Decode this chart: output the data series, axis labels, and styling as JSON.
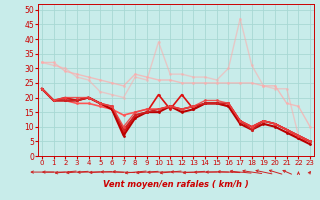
{
  "background_color": "#c8ecea",
  "grid_color": "#a8d8d4",
  "x_label": "Vent moyen/en rafales ( km/h )",
  "x_ticks": [
    0,
    1,
    2,
    3,
    4,
    5,
    6,
    7,
    8,
    9,
    10,
    11,
    12,
    13,
    14,
    15,
    16,
    17,
    18,
    19,
    20,
    21,
    22,
    23
  ],
  "ylim": [
    0,
    52
  ],
  "xlim": [
    -0.3,
    23.3
  ],
  "yticks": [
    0,
    5,
    10,
    15,
    20,
    25,
    30,
    35,
    40,
    45,
    50
  ],
  "series": [
    {
      "y": [
        32,
        32,
        29,
        28,
        27,
        26,
        25,
        24,
        28,
        27,
        26,
        26,
        25,
        25,
        25,
        25,
        25,
        25,
        25,
        24,
        24,
        18,
        17,
        10
      ],
      "color": "#ffaaaa",
      "alpha": 0.7,
      "lw": 1.0,
      "ms": 2.0
    },
    {
      "y": [
        32,
        31,
        30,
        27,
        26,
        22,
        21,
        20,
        27,
        26,
        39,
        28,
        28,
        27,
        27,
        26,
        30,
        47,
        31,
        24,
        23,
        23,
        7,
        5
      ],
      "color": "#ffaaaa",
      "alpha": 0.55,
      "lw": 1.0,
      "ms": 2.0
    },
    {
      "y": [
        23,
        19,
        19,
        18,
        18,
        17,
        16,
        14,
        15,
        16,
        16,
        17,
        16,
        17,
        18,
        18,
        17,
        12,
        10,
        12,
        11,
        9,
        6,
        5
      ],
      "color": "#ff5555",
      "alpha": 1.0,
      "lw": 1.2,
      "ms": 2.0
    },
    {
      "y": [
        23,
        19,
        20,
        19,
        20,
        18,
        16,
        8,
        14,
        15,
        21,
        16,
        21,
        16,
        18,
        18,
        18,
        12,
        10,
        12,
        11,
        9,
        7,
        5
      ],
      "color": "#dd1111",
      "alpha": 1.0,
      "lw": 1.2,
      "ms": 2.0
    },
    {
      "y": [
        23,
        19,
        19,
        19,
        20,
        18,
        16,
        7,
        13,
        15,
        15,
        17,
        15,
        16,
        18,
        18,
        17,
        11,
        9,
        11,
        10,
        8,
        6,
        4
      ],
      "color": "#bb0000",
      "alpha": 1.0,
      "lw": 1.5,
      "ms": 2.0
    },
    {
      "y": [
        23,
        19,
        19,
        19,
        20,
        18,
        17,
        9,
        14,
        15,
        16,
        17,
        16,
        17,
        18,
        18,
        18,
        12,
        9,
        12,
        11,
        9,
        7,
        5
      ],
      "color": "#cc2222",
      "alpha": 1.0,
      "lw": 1.2,
      "ms": 2.0
    },
    {
      "y": [
        23,
        19,
        20,
        20,
        20,
        18,
        17,
        10,
        15,
        16,
        16,
        17,
        16,
        17,
        19,
        19,
        18,
        12,
        10,
        12,
        11,
        9,
        7,
        5
      ],
      "color": "#ee4444",
      "alpha": 0.9,
      "lw": 1.0,
      "ms": 2.0
    }
  ],
  "arrow_color": "#cc2222",
  "label_color": "#cc0000",
  "tick_color": "#cc0000"
}
